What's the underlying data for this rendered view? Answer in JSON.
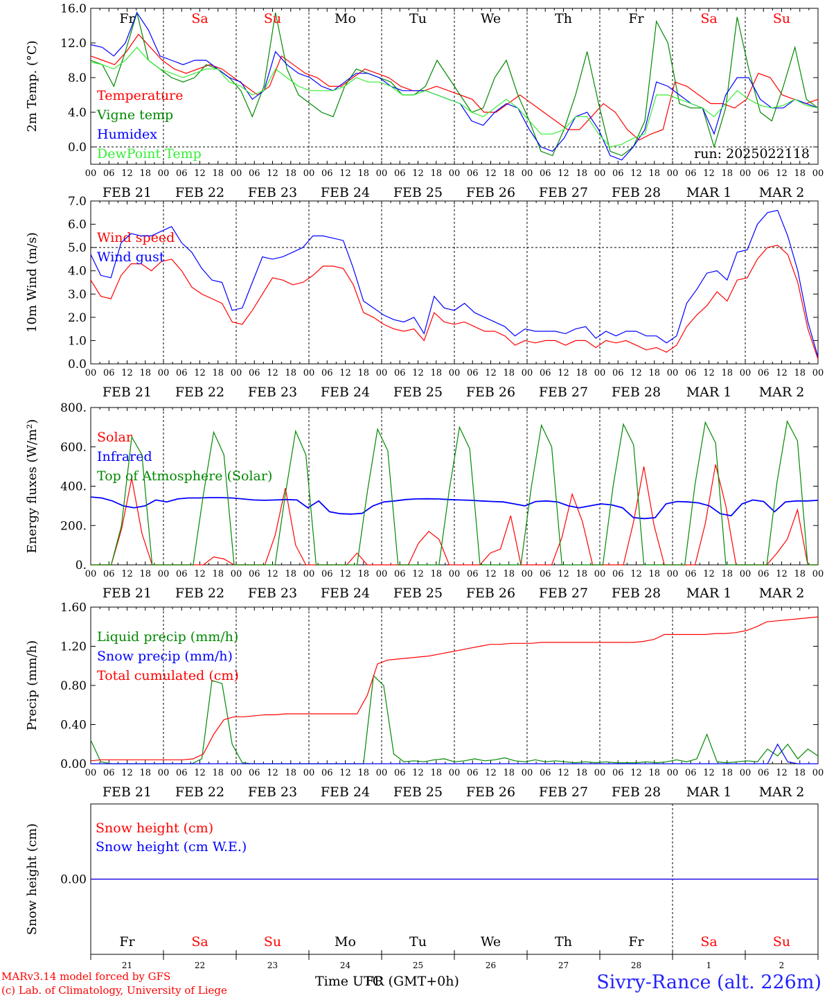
{
  "days": {
    "weekday_labels": [
      "Fr",
      "Sa",
      "Su",
      "Mo",
      "Tu",
      "We",
      "Th",
      "Fr",
      "Sa",
      "Su"
    ],
    "weekday_colors": [
      "#000000",
      "#ff0000",
      "#ff0000",
      "#000000",
      "#000000",
      "#000000",
      "#000000",
      "#000000",
      "#ff0000",
      "#ff0000"
    ],
    "date_labels": [
      "FEB 21",
      "FEB 22",
      "FEB 23",
      "FEB 24",
      "FEB 25",
      "FEB 26",
      "FEB 27",
      "FEB 28",
      "MAR  1",
      "MAR  2"
    ],
    "day_numbers": [
      "21",
      "22",
      "23",
      "24",
      "25",
      "26",
      "27",
      "28",
      "1",
      "2"
    ],
    "hour_ticks": [
      "00",
      "06",
      "12",
      "18"
    ],
    "end_tick": "00"
  },
  "colors": {
    "red": "#ff0000",
    "green": "#008800",
    "blue": "#0000ff",
    "lightgreen": "#33ee33",
    "axis": "#000000"
  },
  "chart_data": [
    {
      "type": "line",
      "ylabel": "2m Temp. (°C)",
      "ylim": [
        -2,
        16
      ],
      "yticks": [
        "0.0",
        "4.0",
        "8.0",
        "12.0",
        "16.0"
      ],
      "ytick_values": [
        0,
        4,
        8,
        12,
        16
      ],
      "hline": 0,
      "run_label": "run: 2025022118",
      "x_unit": "hours since Feb 21 00 UTC, 3-hour step",
      "series": [
        {
          "name": "Temperature",
          "color": "red",
          "values": [
            10.5,
            10,
            9.5,
            11,
            13,
            11.5,
            10,
            9,
            8.5,
            9,
            9.5,
            9,
            8,
            7,
            6,
            7,
            10.5,
            9.5,
            8.5,
            8,
            7,
            7,
            8,
            9,
            8.5,
            8,
            7,
            6.5,
            6.5,
            7,
            6.5,
            6,
            5.5,
            4,
            4,
            5,
            6,
            5,
            4,
            3,
            2,
            2,
            3.5,
            5,
            4,
            2,
            0.8,
            1.5,
            2,
            7.5,
            7,
            6,
            5,
            5,
            4.5,
            5.5,
            8.5,
            8,
            6,
            5.5,
            5,
            5.5
          ]
        },
        {
          "name": "Vigne temp",
          "color": "green",
          "values": [
            10,
            9.5,
            7,
            11,
            15.5,
            10,
            9,
            8,
            7.5,
            8,
            9.5,
            9,
            8,
            6.5,
            3.5,
            7,
            15.5,
            9,
            6,
            5,
            4,
            3.5,
            7,
            9,
            8.5,
            8,
            7.5,
            6,
            6,
            7,
            10,
            8,
            6,
            4,
            4.5,
            8,
            10,
            6,
            3,
            -0.5,
            -1,
            2,
            6,
            11,
            5,
            -0.5,
            -1,
            0,
            3,
            14.5,
            12,
            5,
            4.5,
            4.5,
            0,
            4.5,
            15,
            9,
            4,
            3,
            7,
            11.5,
            5.5,
            4.5
          ]
        },
        {
          "name": "Humidex",
          "color": "blue",
          "values": [
            11.8,
            11.5,
            10.5,
            12,
            15.5,
            13.5,
            10.5,
            10,
            9.5,
            10,
            10,
            9,
            8,
            7.5,
            5.5,
            6.5,
            11,
            9.5,
            8.5,
            8,
            7,
            6.5,
            7.5,
            8.5,
            8.5,
            8,
            7,
            6.5,
            6.5,
            6.5,
            6,
            5.5,
            5,
            3,
            2.5,
            4,
            5,
            4.5,
            2,
            0,
            -0.5,
            1,
            3.5,
            4,
            2,
            -1,
            -1.5,
            0,
            2,
            7.5,
            7,
            6,
            5,
            4.5,
            1.5,
            6,
            8,
            8,
            5.5,
            4.5,
            4.5,
            5.5,
            5,
            4.5
          ]
        },
        {
          "name": "DewPoint Temp",
          "color": "lightgreen",
          "values": [
            9.8,
            9.5,
            9,
            10,
            11.5,
            10,
            9,
            8.5,
            8,
            8.5,
            9,
            9,
            7.5,
            7,
            6,
            6.5,
            9,
            8,
            7,
            6.5,
            6.5,
            6.5,
            7,
            8,
            7.5,
            7.5,
            7,
            6,
            6,
            6.5,
            6,
            5.5,
            5,
            4,
            3.5,
            4.5,
            5.5,
            4.5,
            3,
            1.5,
            1.5,
            2,
            3.5,
            3.5,
            1.5,
            0,
            0.3,
            1,
            1.5,
            6,
            6,
            5.5,
            5,
            4.5,
            3.5,
            5,
            6.5,
            5.5,
            4.8,
            4.5,
            4.8,
            5.5,
            4.8,
            4.5
          ]
        }
      ]
    },
    {
      "type": "line",
      "ylabel": "10m Wind (m/s)",
      "ylim": [
        0,
        7
      ],
      "yticks": [
        "0.0",
        "1.0",
        "2.0",
        "3.0",
        "4.0",
        "5.0",
        "6.0",
        "7.0"
      ],
      "ytick_values": [
        0,
        1,
        2,
        3,
        4,
        5,
        6,
        7
      ],
      "hline": 5,
      "x_unit": "hours since Feb 21 00 UTC, 3-hour step",
      "series": [
        {
          "name": "Wind speed",
          "color": "red",
          "values": [
            3.6,
            2.9,
            2.8,
            3.8,
            4.3,
            4.3,
            4.0,
            4.4,
            4.5,
            4.0,
            3.3,
            3.0,
            2.8,
            2.6,
            1.8,
            1.7,
            2.3,
            3.0,
            3.7,
            3.6,
            3.4,
            3.5,
            3.8,
            4.2,
            4.2,
            4.1,
            3.4,
            2.2,
            2.0,
            1.7,
            1.5,
            1.4,
            1.5,
            1.0,
            2.2,
            1.8,
            1.7,
            1.8,
            1.6,
            1.4,
            1.4,
            1.2,
            0.8,
            1.0,
            0.9,
            1.0,
            1.0,
            0.8,
            1.0,
            1.0,
            0.7,
            1.0,
            0.9,
            1.0,
            0.8,
            0.6,
            0.7,
            0.5,
            0.8,
            1.6,
            2.1,
            2.5,
            3.1,
            2.7,
            3.6,
            3.7,
            4.5,
            5.0,
            5.1,
            4.7,
            3.5,
            1.5,
            0.2
          ]
        },
        {
          "name": "Wind gust",
          "color": "blue",
          "values": [
            4.7,
            3.8,
            3.7,
            5.2,
            5.6,
            5.5,
            5.5,
            5.7,
            5.9,
            5.2,
            4.8,
            4.1,
            3.6,
            3.5,
            2.3,
            2.4,
            3.5,
            4.6,
            4.5,
            4.6,
            4.8,
            5.0,
            5.5,
            5.5,
            5.4,
            5.3,
            4.1,
            2.7,
            2.4,
            2.1,
            1.9,
            1.8,
            2.0,
            1.3,
            2.9,
            2.4,
            2.3,
            2.6,
            2.2,
            2.0,
            1.8,
            1.6,
            1.2,
            1.5,
            1.4,
            1.4,
            1.4,
            1.3,
            1.5,
            1.6,
            1.1,
            1.4,
            1.2,
            1.4,
            1.4,
            1.2,
            1.2,
            0.9,
            1.2,
            2.6,
            3.2,
            3.9,
            4.0,
            3.6,
            4.8,
            4.9,
            6.0,
            6.5,
            6.6,
            5.5,
            4.0,
            1.8,
            0.3
          ]
        }
      ]
    },
    {
      "type": "line",
      "ylabel": "Energy fluxes (W/m²)",
      "ylim": [
        0,
        800
      ],
      "yticks": [
        "0.",
        "200.",
        "400.",
        "600.",
        "800."
      ],
      "ytick_values": [
        0,
        200,
        400,
        600,
        800
      ],
      "x_unit": "hours since Feb 21 00 UTC, 3-hour step",
      "series": [
        {
          "name": "Solar",
          "color": "red",
          "values": [
            0,
            0,
            0,
            180,
            440,
            160,
            0,
            0,
            0,
            0,
            0,
            0,
            40,
            30,
            0,
            0,
            0,
            0,
            150,
            390,
            100,
            0,
            0,
            0,
            0,
            0,
            60,
            0,
            0,
            0,
            0,
            0,
            110,
            170,
            130,
            0,
            0,
            0,
            0,
            60,
            80,
            250,
            0,
            0,
            0,
            0,
            140,
            360,
            220,
            0,
            0,
            0,
            0,
            220,
            500,
            200,
            0,
            0,
            0,
            0,
            210,
            510,
            300,
            0,
            0,
            0,
            0,
            60,
            130,
            280,
            0,
            0
          ]
        },
        {
          "name": "Infrared",
          "color": "blue",
          "values": [
            345,
            340,
            325,
            300,
            290,
            300,
            330,
            320,
            335,
            340,
            340,
            342,
            342,
            340,
            335,
            330,
            328,
            330,
            332,
            330,
            290,
            325,
            270,
            260,
            258,
            262,
            300,
            320,
            325,
            332,
            335,
            336,
            335,
            332,
            330,
            328,
            325,
            322,
            320,
            310,
            300,
            322,
            325,
            320,
            300,
            290,
            300,
            310,
            305,
            290,
            240,
            235,
            240,
            310,
            322,
            320,
            315,
            300,
            260,
            250,
            310,
            330,
            322,
            270,
            320,
            325,
            325,
            328
          ]
        },
        {
          "name": "Top of Atmosphere (Solar)",
          "color": "green",
          "values": [
            0,
            0,
            0,
            200,
            650,
            560,
            0,
            0,
            0,
            0,
            0,
            360,
            675,
            560,
            0,
            0,
            0,
            0,
            0,
            360,
            680,
            560,
            0,
            0,
            0,
            0,
            0,
            370,
            690,
            580,
            0,
            0,
            0,
            0,
            0,
            380,
            700,
            590,
            0,
            0,
            0,
            0,
            0,
            390,
            710,
            600,
            0,
            0,
            0,
            0,
            0,
            400,
            715,
            610,
            0,
            0,
            0,
            0,
            0,
            410,
            725,
            620,
            0,
            0,
            0,
            0,
            0,
            420,
            730,
            630,
            0,
            0
          ]
        }
      ]
    },
    {
      "type": "line",
      "ylabel": "Precip (mm/h)",
      "ylim": [
        0,
        1.6
      ],
      "yticks": [
        "0.00",
        "0.40",
        "0.80",
        "1.20",
        "1.60"
      ],
      "ytick_values": [
        0,
        0.4,
        0.8,
        1.2,
        1.6
      ],
      "x_unit": "hours since Feb 21 00 UTC, 3-hour step",
      "series": [
        {
          "name": "Liquid precip (mm/h)",
          "color": "green",
          "values": [
            0.24,
            0.02,
            0,
            0,
            0,
            0,
            0,
            0,
            0,
            0,
            0,
            0.05,
            0.85,
            0.82,
            0.2,
            0.01,
            0,
            0,
            0,
            0,
            0,
            0,
            0,
            0,
            0,
            0,
            0,
            0,
            0.9,
            0.8,
            0.1,
            0.02,
            0.03,
            0.02,
            0.04,
            0.05,
            0.02,
            0.03,
            0.05,
            0.03,
            0.04,
            0.06,
            0.03,
            0.02,
            0.04,
            0.02,
            0.03,
            0.02,
            0.01,
            0.02,
            0.01,
            0.02,
            0.01,
            0.01,
            0.01,
            0.02,
            0.01,
            0.02,
            0.04,
            0.02,
            0.05,
            0.3,
            0.02,
            0.01,
            0.02,
            0.03,
            0.02,
            0.15,
            0.08,
            0.2,
            0.05,
            0.15,
            0.08
          ]
        },
        {
          "name": "Snow precip (mm/h)",
          "color": "blue",
          "values": [
            0,
            0,
            0,
            0,
            0,
            0,
            0,
            0,
            0,
            0,
            0,
            0,
            0,
            0,
            0,
            0,
            0,
            0,
            0,
            0,
            0,
            0,
            0,
            0,
            0,
            0,
            0,
            0,
            0,
            0,
            0,
            0,
            0,
            0,
            0,
            0,
            0,
            0,
            0,
            0,
            0,
            0,
            0,
            0,
            0,
            0,
            0,
            0,
            0,
            0,
            0,
            0,
            0,
            0,
            0,
            0,
            0,
            0,
            0,
            0,
            0,
            0,
            0,
            0,
            0,
            0,
            0,
            0,
            0.2,
            0.02,
            0,
            0,
            0
          ]
        },
        {
          "name": "Total cumulated (cm)",
          "color": "red",
          "values": [
            0.03,
            0.04,
            0.04,
            0.04,
            0.04,
            0.04,
            0.04,
            0.04,
            0.04,
            0.04,
            0.05,
            0.1,
            0.3,
            0.45,
            0.48,
            0.48,
            0.49,
            0.5,
            0.5,
            0.51,
            0.51,
            0.51,
            0.51,
            0.51,
            0.51,
            0.51,
            0.51,
            0.7,
            1.02,
            1.06,
            1.07,
            1.08,
            1.09,
            1.1,
            1.12,
            1.14,
            1.16,
            1.18,
            1.2,
            1.22,
            1.22,
            1.23,
            1.23,
            1.23,
            1.24,
            1.24,
            1.24,
            1.24,
            1.24,
            1.24,
            1.24,
            1.24,
            1.24,
            1.24,
            1.25,
            1.27,
            1.32,
            1.32,
            1.32,
            1.32,
            1.32,
            1.33,
            1.33,
            1.34,
            1.36,
            1.4,
            1.45,
            1.46,
            1.47,
            1.48,
            1.49,
            1.5
          ]
        }
      ]
    },
    {
      "type": "line",
      "ylabel": "Snow height (cm)",
      "ylim": [
        -1,
        1
      ],
      "yticks": [
        "0.00"
      ],
      "ytick_values": [
        0
      ],
      "x_unit": "hours since Feb 21 00 UTC",
      "series": [
        {
          "name": "Snow height (cm)",
          "color": "red",
          "values": [
            0,
            0
          ]
        },
        {
          "name": "Snow height (cm W.E.)",
          "color": "blue",
          "values": [
            0,
            0
          ]
        }
      ]
    }
  ],
  "footer": {
    "model_line": "MARv3.14 model forced by GFS",
    "lab_line": "(c) Lab. of Climatology, University of Liege",
    "time_label": "Time UTC",
    "time_label2": "FR (GMT+0h)",
    "station": "Sivry-Rance (alt. 226m)"
  }
}
